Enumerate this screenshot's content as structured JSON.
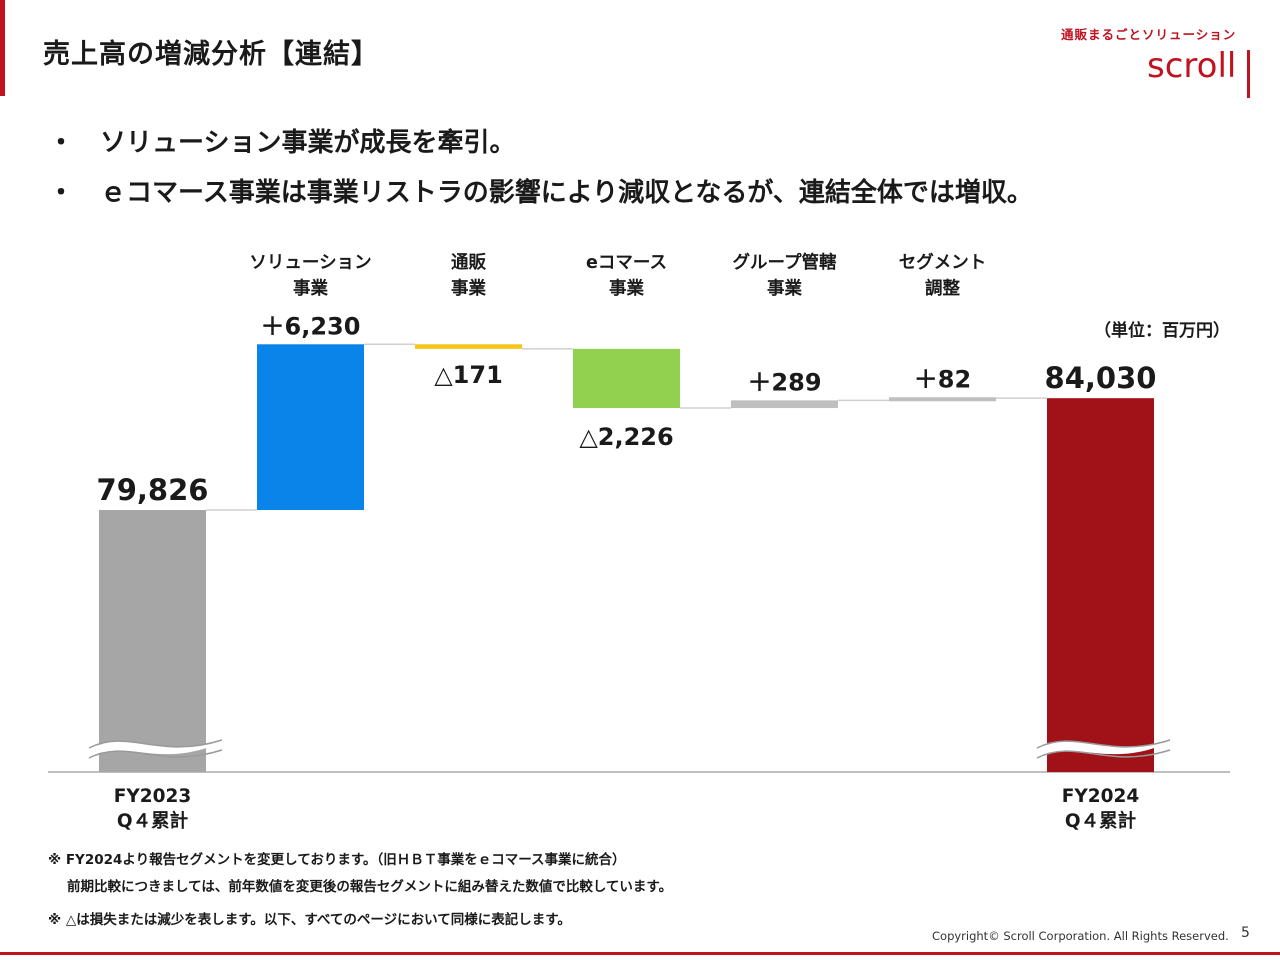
{
  "header": {
    "title": "売上高の増減分析【連結】",
    "logo_tagline": "通販まるごとソリューション",
    "logo_text": "scroll"
  },
  "bullets": [
    {
      "marker": "・",
      "text": "ソリューション事業が成長を牽引。"
    },
    {
      "marker": "・",
      "text": "ｅコマース事業は事業リストラの影響により減収となるが、連結全体では増収。"
    }
  ],
  "chart_data": {
    "type": "waterfall",
    "unit": "（単位：百万円）",
    "start": {
      "label_lines": [
        "FY2023",
        "Q４累計"
      ],
      "value": 79826,
      "value_label": "79,826",
      "color": "#a6a6a6"
    },
    "steps": [
      {
        "label_lines": [
          "ソリューション",
          "事業"
        ],
        "delta": 6230,
        "value_label": "＋6,230",
        "color": "#0a84e8"
      },
      {
        "label_lines": [
          "通販",
          "事業"
        ],
        "delta": -171,
        "value_label": "△171",
        "color": "#f5c518"
      },
      {
        "label_lines": [
          "eコマース",
          "事業"
        ],
        "delta": -2226,
        "value_label": "△2,226",
        "color": "#92d050"
      },
      {
        "label_lines": [
          "グループ管轄",
          "事業"
        ],
        "delta": 289,
        "value_label": "＋289",
        "color": "#bfbfbf"
      },
      {
        "label_lines": [
          "セグメント",
          "調整"
        ],
        "delta": 82,
        "value_label": "＋82",
        "color": "#bfbfbf"
      }
    ],
    "end": {
      "label_lines": [
        "FY2024",
        "Q４累計"
      ],
      "value": 84030,
      "value_label": "84,030",
      "color": "#a01218"
    },
    "axis_break": true
  },
  "footnotes": {
    "line1": "※ FY2024より報告セグメントを変更しております。（旧ＨＢＴ事業をｅコマース事業に統合）",
    "line2": "前期比較につきましては、前年数値を変更後の報告セグメントに組み替えた数値で比較しています。",
    "line3": "※ △は損失または減少を表します。以下、すべてのページにおいて同様に表記します。"
  },
  "footer": {
    "copyright": "Copyright© Scroll Corporation. All Rights Reserved.",
    "page_number": "5"
  }
}
